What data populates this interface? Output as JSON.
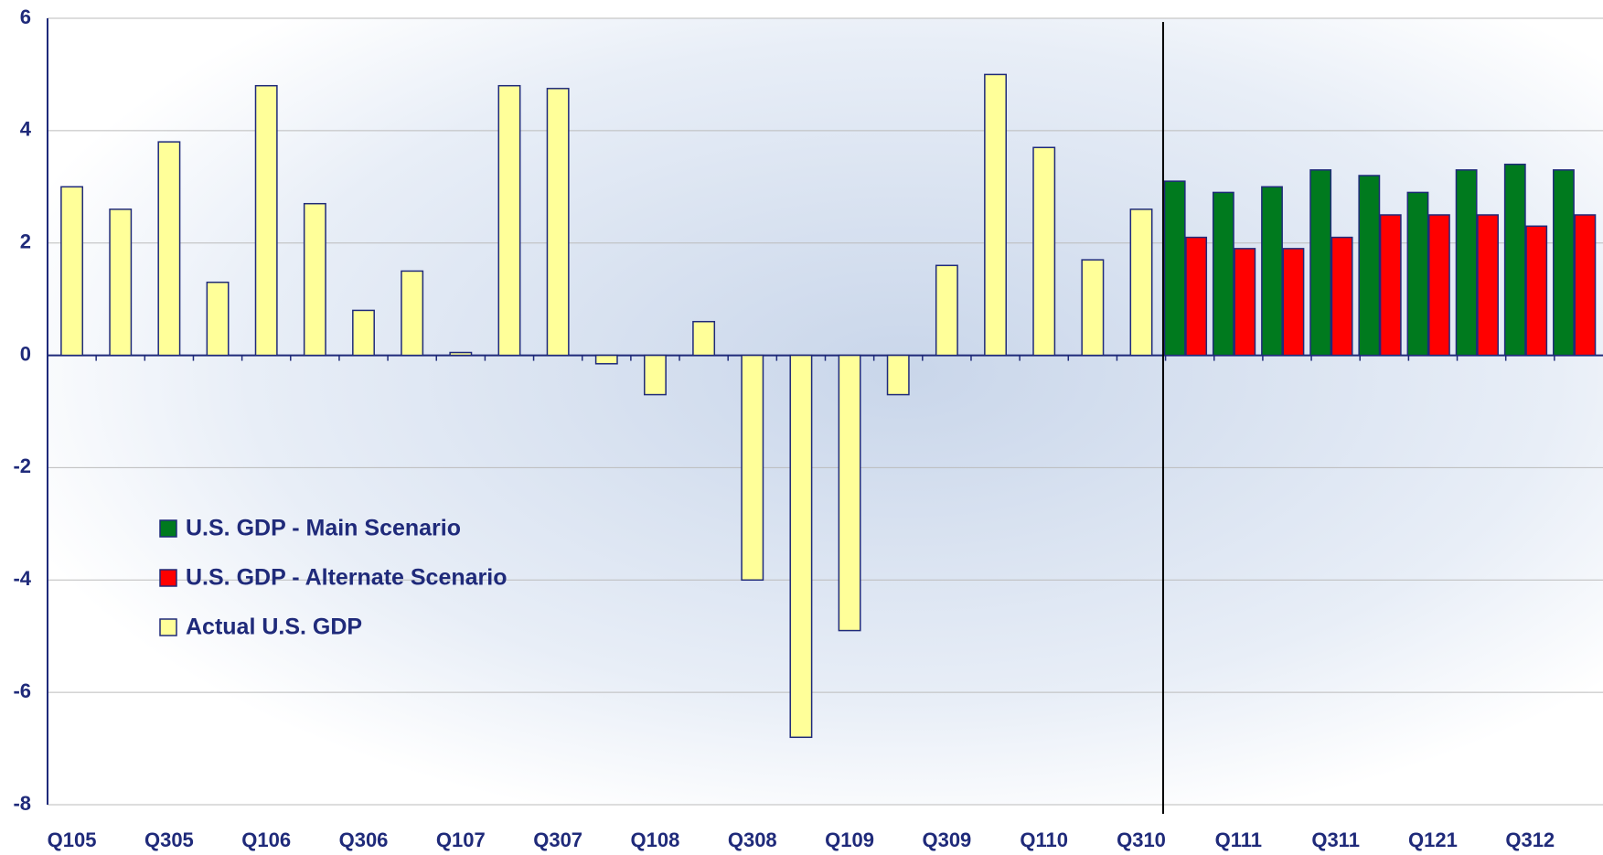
{
  "chart_data": {
    "type": "bar",
    "categories": [
      "Q105",
      null,
      "Q305",
      null,
      "Q106",
      null,
      "Q306",
      null,
      "Q107",
      null,
      "Q307",
      null,
      "Q108",
      null,
      "Q308",
      null,
      "Q109",
      null,
      "Q309",
      null,
      "Q110",
      null,
      "Q310",
      null,
      "Q111",
      null,
      "Q311",
      null,
      "Q121",
      null,
      "Q312",
      null
    ],
    "series": [
      {
        "name": "U.S. GDP - Main Scenario",
        "color": "#007a1e",
        "values": [
          null,
          null,
          null,
          null,
          null,
          null,
          null,
          null,
          null,
          null,
          null,
          null,
          null,
          null,
          null,
          null,
          null,
          null,
          null,
          null,
          null,
          null,
          null,
          3.1,
          2.9,
          3.0,
          3.3,
          3.2,
          2.9,
          3.3,
          3.4,
          3.3
        ]
      },
      {
        "name": "U.S. GDP - Alternate Scenario",
        "color": "#ff0000",
        "values": [
          null,
          null,
          null,
          null,
          null,
          null,
          null,
          null,
          null,
          null,
          null,
          null,
          null,
          null,
          null,
          null,
          null,
          null,
          null,
          null,
          null,
          null,
          null,
          2.1,
          1.9,
          1.9,
          2.1,
          2.5,
          2.5,
          2.5,
          2.3,
          2.5
        ]
      },
      {
        "name": "Actual U.S. GDP",
        "color": "#ffff99",
        "values": [
          3.0,
          2.6,
          3.8,
          1.3,
          4.8,
          2.7,
          0.8,
          1.5,
          0.05,
          4.8,
          4.75,
          -0.15,
          -0.7,
          0.6,
          -4.0,
          -6.8,
          -4.9,
          -0.7,
          1.6,
          5.0,
          3.7,
          1.7,
          2.6,
          null,
          null,
          null,
          null,
          null,
          null,
          null,
          null,
          null
        ]
      }
    ],
    "ylim": [
      -8,
      6
    ],
    "yticks": [
      -8,
      -6,
      -4,
      -2,
      0,
      2,
      4,
      6
    ],
    "grid": true
  }
}
